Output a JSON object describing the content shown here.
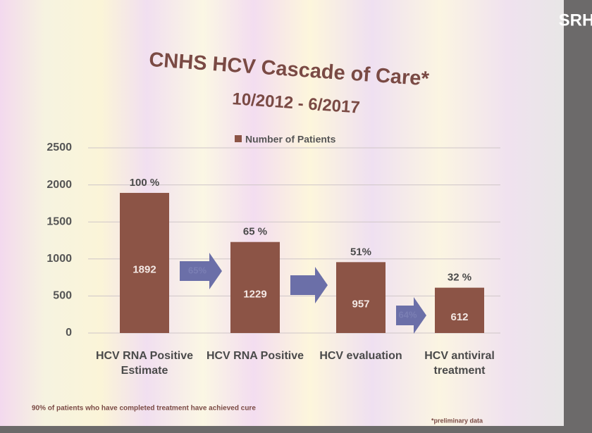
{
  "chart_data": {
    "type": "bar",
    "title": "CNHS HCV Cascade of Care*",
    "subtitle": "10/2012 - 6/2017",
    "categories": [
      "HCV RNA Positive Estimate",
      "HCV RNA Positive",
      "HCV evaluation",
      "HCV antiviral treatment"
    ],
    "series": [
      {
        "name": "Number of Patients",
        "color": "#8c5446",
        "values": [
          1892,
          1229,
          957,
          612
        ]
      }
    ],
    "percent_labels": [
      "100 %",
      "65 %",
      "51%",
      "32 %"
    ],
    "arrow_labels": [
      "65%",
      null,
      "64%"
    ],
    "ylim": [
      0,
      2500
    ],
    "yticks": [
      0,
      500,
      1000,
      1500,
      2000,
      2500
    ],
    "grid": true,
    "legend": "top",
    "footnote": "90% of patients who have completed treatment have achieved cure",
    "note": "*preliminary data",
    "logo": "SRH"
  }
}
